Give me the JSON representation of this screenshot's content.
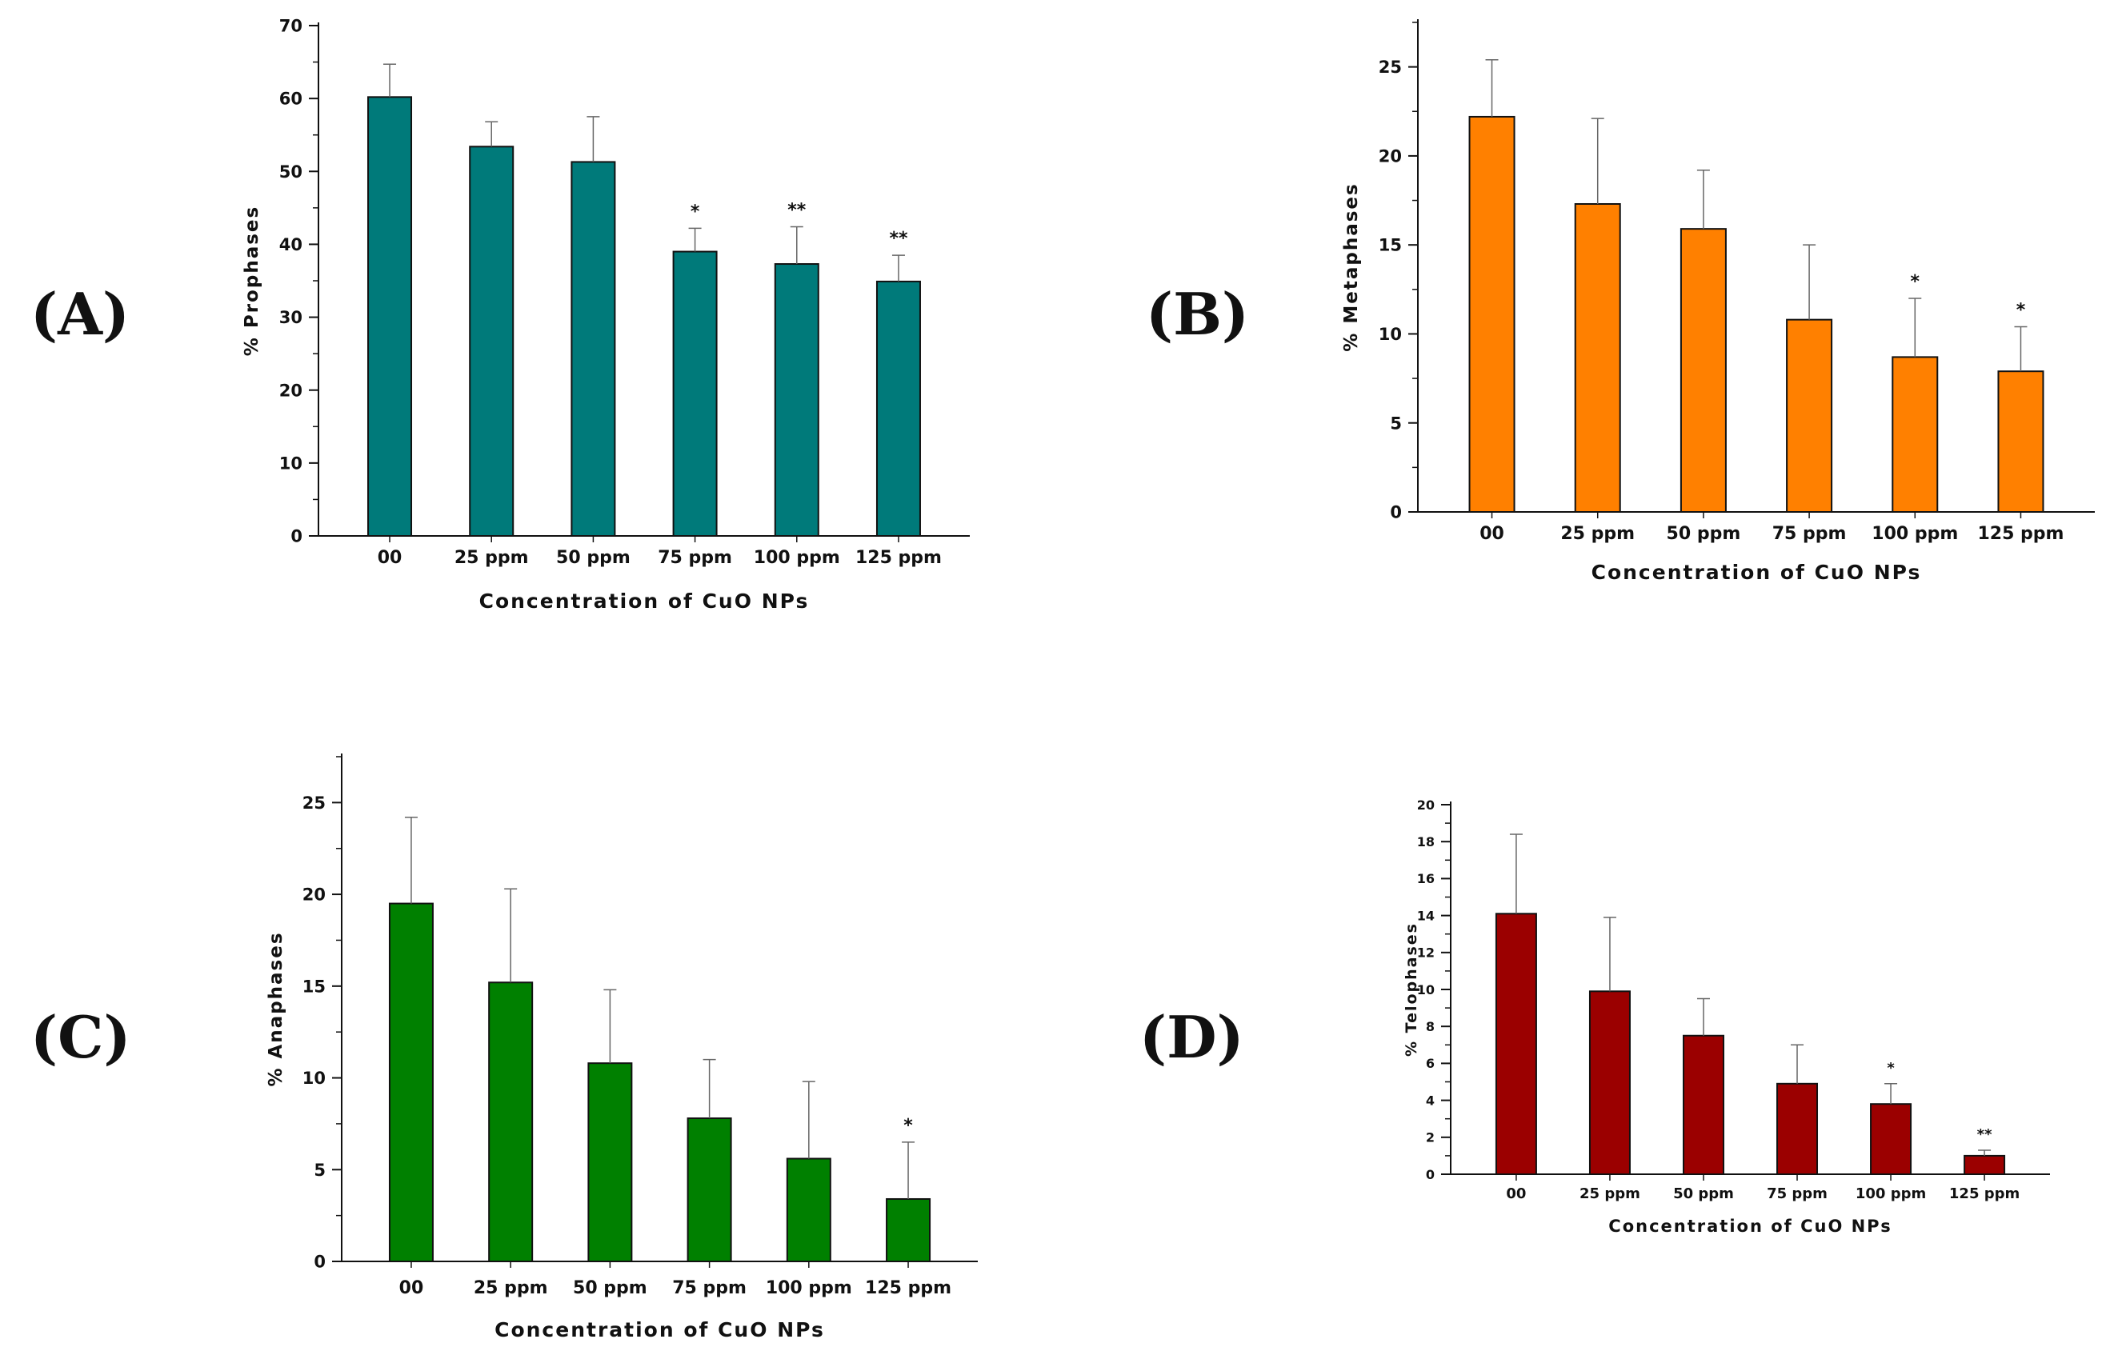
{
  "panel_labels": [
    "(A)",
    "(B)",
    "(C)",
    "(D)"
  ],
  "chart_data": [
    {
      "type": "bar",
      "panel": "(A)",
      "title": "",
      "xlabel": "Concentration of CuO NPs",
      "ylabel": "% Prophases",
      "categories": [
        "00",
        "25 ppm",
        "50 ppm",
        "75 ppm",
        "100 ppm",
        "125 ppm"
      ],
      "values": [
        60.2,
        53.4,
        51.3,
        39.0,
        37.3,
        34.9
      ],
      "errors": [
        4.5,
        3.4,
        6.2,
        3.2,
        5.1,
        3.6
      ],
      "significance": [
        "",
        "",
        "",
        "*",
        "**",
        "**"
      ],
      "ylim": [
        0,
        70
      ],
      "yticks": [
        0,
        10,
        20,
        30,
        40,
        50,
        60,
        70
      ],
      "color": "#007a7a"
    },
    {
      "type": "bar",
      "panel": "(B)",
      "title": "",
      "xlabel": "Concentration of CuO NPs",
      "ylabel": "% Metaphases",
      "categories": [
        "00",
        "25 ppm",
        "50 ppm",
        "75 ppm",
        "100 ppm",
        "125 ppm"
      ],
      "values": [
        22.2,
        17.3,
        15.9,
        10.8,
        8.7,
        7.9
      ],
      "errors": [
        3.2,
        4.8,
        3.3,
        4.2,
        3.3,
        2.5
      ],
      "significance": [
        "",
        "",
        "",
        "",
        "*",
        "*"
      ],
      "ylim": [
        0,
        27.5
      ],
      "yticks": [
        0,
        5,
        10,
        15,
        20,
        25
      ],
      "color": "#ff8000"
    },
    {
      "type": "bar",
      "panel": "(C)",
      "title": "",
      "xlabel": "Concentration of CuO NPs",
      "ylabel": "% Anaphases",
      "categories": [
        "00",
        "25 ppm",
        "50 ppm",
        "75 ppm",
        "100 ppm",
        "125 ppm"
      ],
      "values": [
        19.5,
        15.2,
        10.8,
        7.8,
        5.6,
        3.4
      ],
      "errors": [
        4.7,
        5.1,
        4.0,
        3.2,
        4.2,
        3.1
      ],
      "significance": [
        "",
        "",
        "",
        "",
        "",
        "*"
      ],
      "ylim": [
        0,
        27.5
      ],
      "yticks": [
        0,
        5,
        10,
        15,
        20,
        25
      ],
      "color": "#008000"
    },
    {
      "type": "bar",
      "panel": "(D)",
      "title": "",
      "xlabel": "Concentration of CuO NPs",
      "ylabel": "% Telophases",
      "categories": [
        "00",
        "25 ppm",
        "50 ppm",
        "75 ppm",
        "100 ppm",
        "125 ppm"
      ],
      "values": [
        14.1,
        9.9,
        7.5,
        4.9,
        3.8,
        1.0
      ],
      "errors": [
        4.3,
        4.0,
        2.0,
        2.1,
        1.1,
        0.3
      ],
      "significance": [
        "",
        "",
        "",
        "",
        "*",
        "**"
      ],
      "ylim": [
        0,
        20
      ],
      "yticks": [
        0,
        2,
        4,
        6,
        8,
        10,
        12,
        14,
        16,
        18,
        20
      ],
      "color": "#9b0000"
    }
  ]
}
